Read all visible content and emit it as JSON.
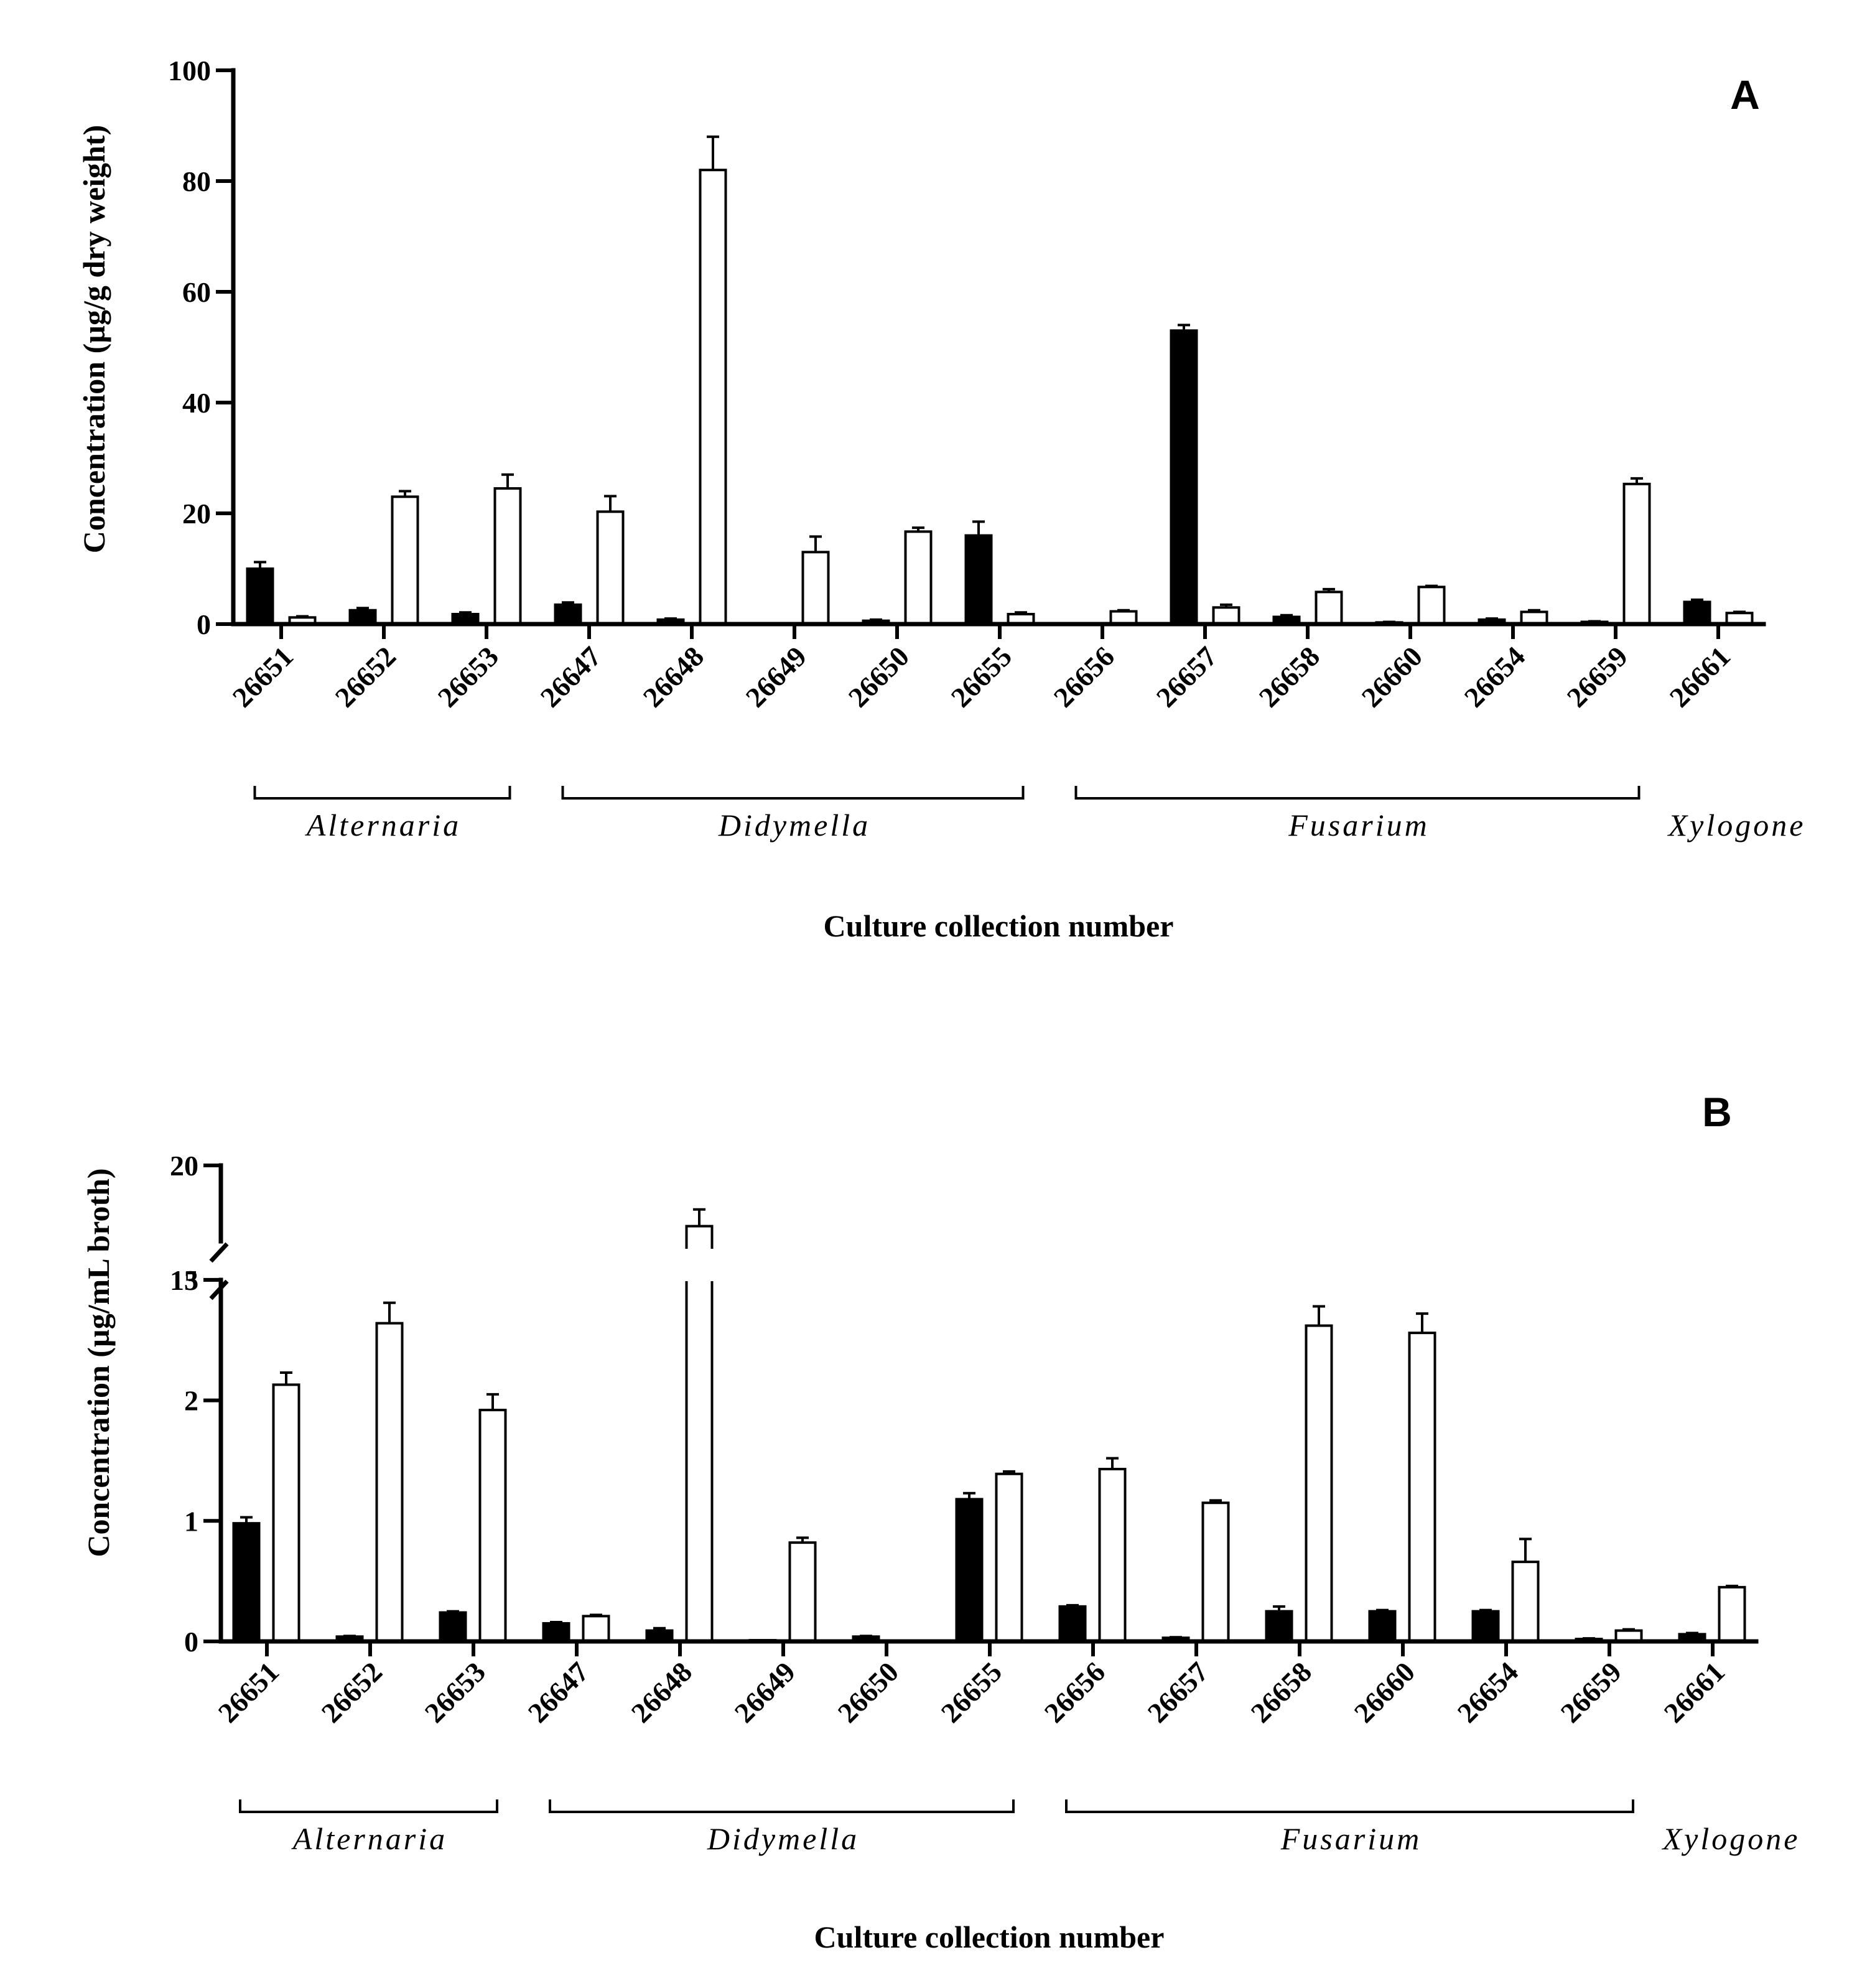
{
  "chart_data": [
    {
      "panel": "A",
      "type": "bar",
      "ylabel": "Concentration (µg/g dry weight)",
      "xlabel": "Culture collection number",
      "ylim": [
        0,
        100
      ],
      "yticks": [
        "0",
        "20",
        "40",
        "60",
        "80",
        "100"
      ],
      "categories": [
        "26651",
        "26652",
        "26653",
        "26647",
        "26648",
        "26649",
        "26650",
        "26655",
        "26656",
        "26657",
        "26658",
        "26660",
        "26654",
        "26659",
        "26661"
      ],
      "series": [
        {
          "name": "dark",
          "color": "#000000",
          "values": [
            10,
            2.5,
            1.8,
            3.5,
            0.8,
            0,
            0.6,
            16,
            0,
            53,
            1.3,
            0.3,
            0.8,
            0.4,
            4
          ],
          "errors": [
            1.2,
            0.4,
            0.3,
            0.4,
            0.2,
            0,
            0.2,
            2.5,
            0,
            1,
            0.3,
            0.1,
            0.2,
            0.1,
            0.4
          ]
        },
        {
          "name": "light",
          "color": "#ffffff",
          "values": [
            1.2,
            23,
            24.5,
            20.3,
            82,
            13,
            16.7,
            1.8,
            2.3,
            3,
            5.8,
            6.7,
            2.2,
            25.3,
            2
          ]
        },
        {
          "name": "light-errors",
          "color": "#ffffff",
          "values": [
            0.2,
            1,
            2.5,
            2.8,
            6,
            2.8,
            0.7,
            0.3,
            0.2,
            0.5,
            0.5,
            0.2,
            0.3,
            1,
            0.2
          ]
        }
      ],
      "groups": [
        {
          "label": "Alternaria",
          "from": 0,
          "to": 2
        },
        {
          "label": "Didymella",
          "from": 3,
          "to": 7
        },
        {
          "label": "Fusarium",
          "from": 8,
          "to": 13
        },
        {
          "label": "Xylogone",
          "from": 14,
          "to": 14
        }
      ]
    },
    {
      "panel": "B",
      "type": "bar",
      "ylabel": "Concentration (µg/mL broth)",
      "xlabel": "Culture collection number",
      "ylim": [
        0,
        20
      ],
      "axis_break": [
        3,
        15
      ],
      "yticks": [
        "0",
        "1",
        "2",
        "3",
        "15",
        "20"
      ],
      "categories": [
        "26651",
        "26652",
        "26653",
        "26647",
        "26648",
        "26649",
        "26650",
        "26655",
        "26656",
        "26657",
        "26658",
        "26660",
        "26654",
        "26659",
        "26661"
      ],
      "series": [
        {
          "name": "dark",
          "color": "#000000",
          "values": [
            0.98,
            0.04,
            0.24,
            0.15,
            0.09,
            0.01,
            0.04,
            1.18,
            0.29,
            0.03,
            0.25,
            0.25,
            0.25,
            0.02,
            0.06
          ],
          "errors": [
            0.05,
            0.005,
            0.01,
            0.01,
            0.02,
            0,
            0.005,
            0.05,
            0.01,
            0.005,
            0.04,
            0.01,
            0.01,
            0.005,
            0.01
          ]
        },
        {
          "name": "light",
          "color": "#ffffff",
          "values": [
            2.13,
            2.64,
            1.92,
            0.21,
            16,
            0.82,
            0,
            1.39,
            1.43,
            1.15,
            2.62,
            2.56,
            0.66,
            0.09,
            0.45
          ]
        },
        {
          "name": "light-errors",
          "color": "#ffffff",
          "values": [
            0.1,
            0.17,
            0.13,
            0.01,
            1.1,
            0.04,
            0,
            0.02,
            0.09,
            0.02,
            0.16,
            0.16,
            0.19,
            0.01,
            0.01
          ]
        }
      ],
      "groups": [
        {
          "label": "Alternaria",
          "from": 0,
          "to": 2
        },
        {
          "label": "Didymella",
          "from": 3,
          "to": 7
        },
        {
          "label": "Fusarium",
          "from": 8,
          "to": 13
        },
        {
          "label": "Xylogone",
          "from": 14,
          "to": 14
        }
      ]
    }
  ]
}
